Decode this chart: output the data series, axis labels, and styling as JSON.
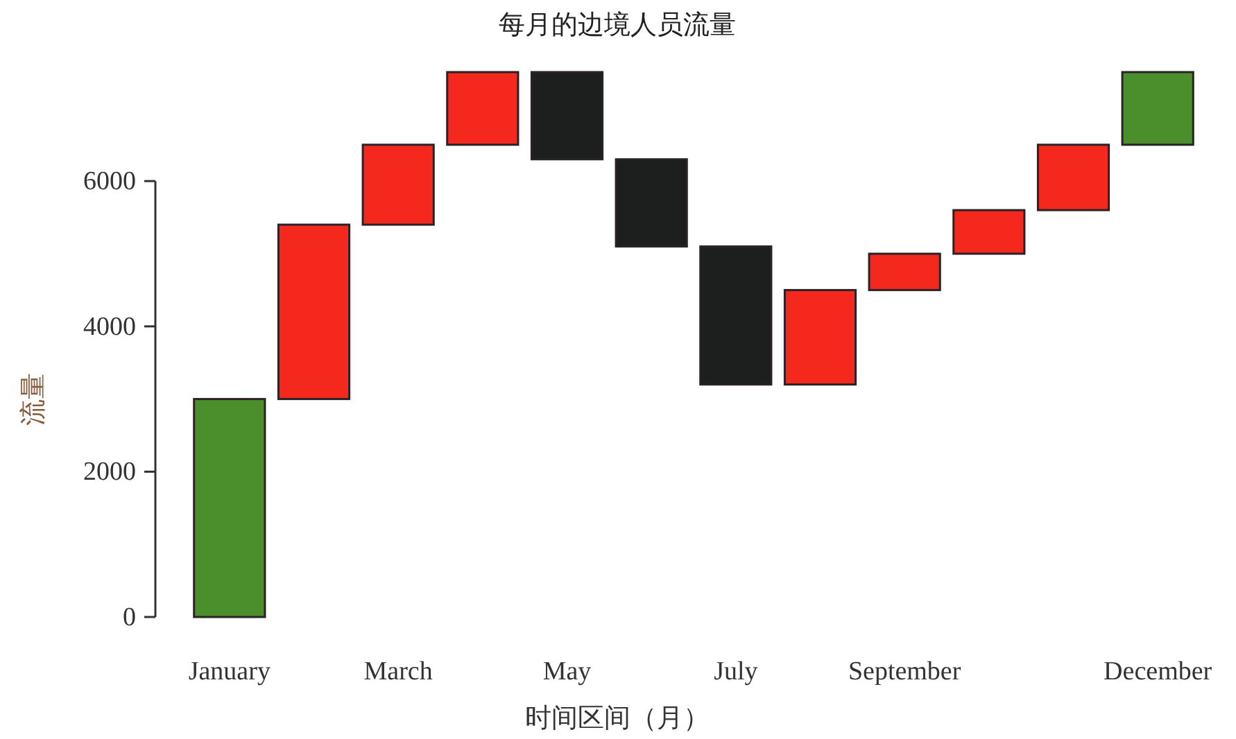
{
  "chart_data": {
    "type": "bar",
    "title": "每月的边境人员流量",
    "xlabel": "时间区间（月）",
    "ylabel": "流量",
    "categories": [
      "January",
      null,
      "March",
      null,
      "May",
      null,
      "July",
      null,
      "September",
      null,
      null,
      "December"
    ],
    "base": [
      0,
      3000,
      5400,
      6500,
      7500,
      6300,
      5100,
      3200,
      4500,
      5000,
      5600,
      6500
    ],
    "values": [
      3000,
      2400,
      1100,
      1000,
      -1200,
      -1200,
      -1900,
      1300,
      500,
      600,
      900,
      1000
    ],
    "colors": [
      "#4a8f2c",
      "#f5281e",
      "#f5281e",
      "#f5281e",
      "#1c1f1e",
      "#1c1f1e",
      "#1c1f1e",
      "#f5281e",
      "#f5281e",
      "#f5281e",
      "#f5281e",
      "#4a8f2c"
    ],
    "ylim": [
      0,
      7500
    ],
    "yticks": [
      0,
      2000,
      4000,
      6000
    ],
    "grid": false
  }
}
